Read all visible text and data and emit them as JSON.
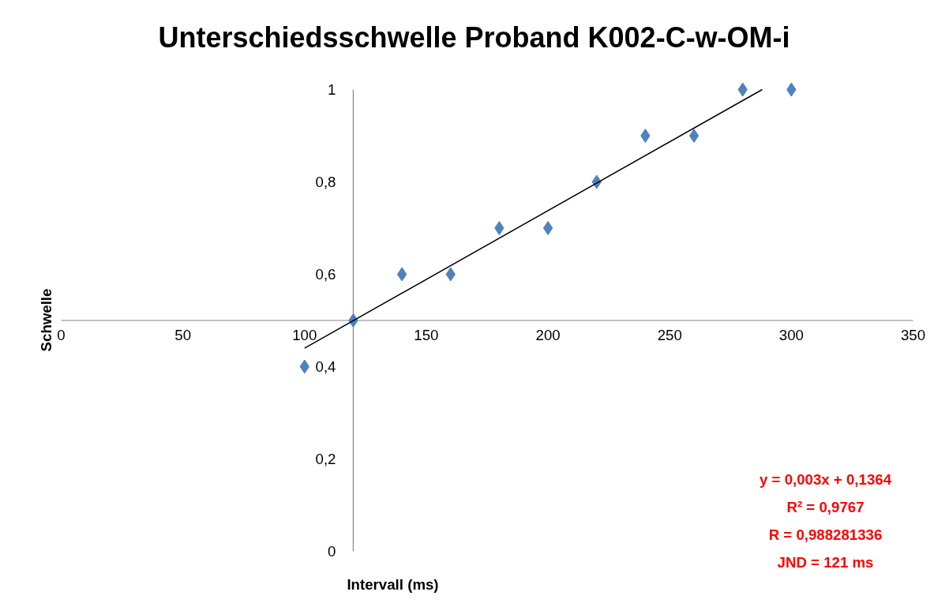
{
  "chart_data": {
    "type": "scatter",
    "title": "Unterschiedsschwelle Proband K002-C-w-OM-i",
    "xlabel": "Intervall (ms)",
    "ylabel": "Schwelle",
    "x": [
      100,
      120,
      140,
      160,
      180,
      200,
      220,
      240,
      260,
      280,
      300
    ],
    "series": [
      {
        "color": "#4f81bd",
        "marker": "diamond",
        "values": [
          0.4,
          0.5,
          0.6,
          0.6,
          0.7,
          0.7,
          0.8,
          0.9,
          0.9,
          1,
          1
        ]
      },
      {
        "type": "line",
        "color": "#000000",
        "x": [
          100,
          288
        ],
        "values": [
          0.44,
          1.0
        ]
      }
    ],
    "xlim": [
      0,
      350
    ],
    "ylim": [
      0,
      1
    ],
    "xticks": [
      0,
      50,
      100,
      150,
      200,
      250,
      300,
      350
    ],
    "yticks": [
      {
        "value": 0,
        "label": "0"
      },
      {
        "value": 0.2,
        "label": "0,2"
      },
      {
        "value": 0.4,
        "label": "0,4"
      },
      {
        "value": 0.6,
        "label": "0,6"
      },
      {
        "value": 0.8,
        "label": "0,8"
      },
      {
        "value": 1,
        "label": "1"
      }
    ],
    "annotations": [
      "y = 0,003x + 0,1364",
      "R² = 0,9767",
      "R = 0,988281336",
      "JND = 121 ms"
    ]
  }
}
